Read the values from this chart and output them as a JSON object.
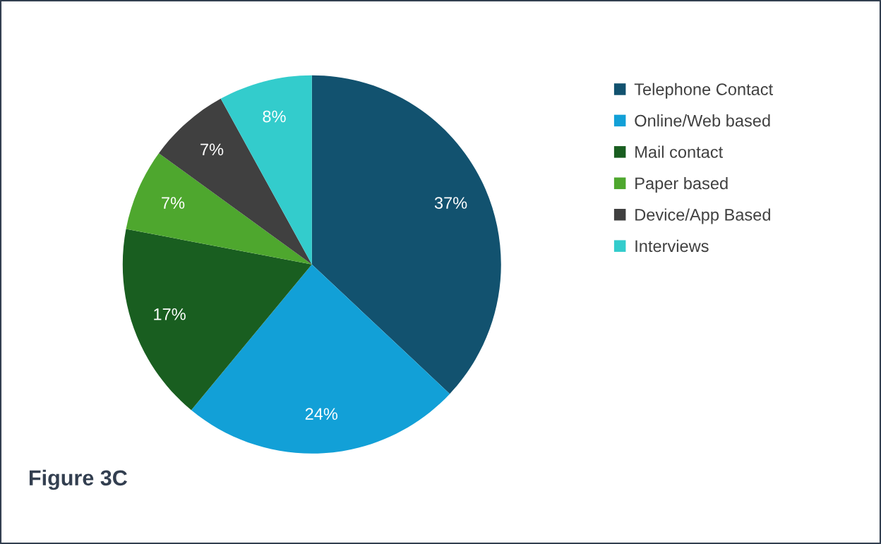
{
  "chart_data": {
    "type": "pie",
    "categories": [
      "Telephone Contact",
      "Online/Web based",
      "Mail contact",
      "Paper based",
      "Device/App Based",
      "Interviews"
    ],
    "values": [
      37,
      24,
      17,
      7,
      7,
      8
    ],
    "colors": [
      "#12526f",
      "#12a0d7",
      "#195e20",
      "#4ea72e",
      "#404040",
      "#33cccc"
    ],
    "value_labels": [
      "37%",
      "24%",
      "17%",
      "7%",
      "7%",
      "8%"
    ],
    "legend": "right",
    "annotations": [
      "Figure 3C"
    ]
  }
}
